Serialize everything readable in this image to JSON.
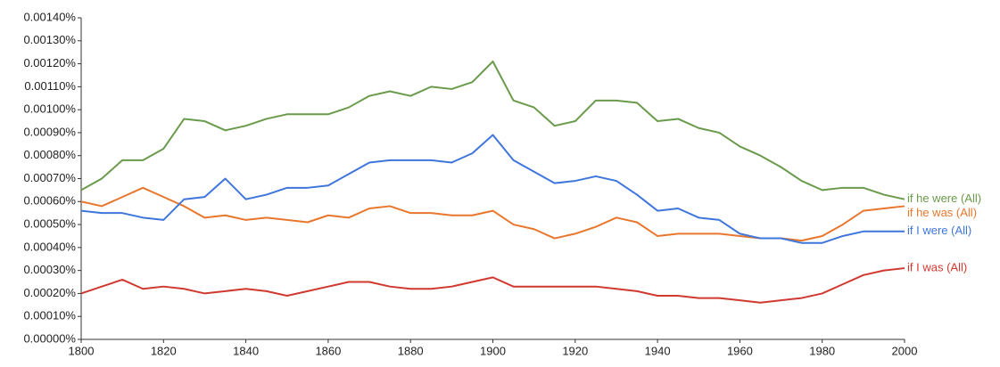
{
  "chart_data": {
    "type": "line",
    "x": [
      1800,
      1805,
      1810,
      1815,
      1820,
      1825,
      1830,
      1835,
      1840,
      1845,
      1850,
      1855,
      1860,
      1865,
      1870,
      1875,
      1880,
      1885,
      1890,
      1895,
      1900,
      1905,
      1910,
      1915,
      1920,
      1925,
      1930,
      1935,
      1940,
      1945,
      1950,
      1955,
      1960,
      1965,
      1970,
      1975,
      1980,
      1985,
      1990,
      1995,
      2000
    ],
    "series": [
      {
        "name": "if he were (All)",
        "color": "#6a9a4b",
        "values": [
          0.00065,
          0.0007,
          0.00078,
          0.00078,
          0.00083,
          0.00096,
          0.00095,
          0.00091,
          0.00093,
          0.00096,
          0.00098,
          0.00098,
          0.00098,
          0.00101,
          0.00106,
          0.00108,
          0.00106,
          0.0011,
          0.00109,
          0.00112,
          0.00121,
          0.00104,
          0.00101,
          0.00093,
          0.00095,
          0.00104,
          0.00104,
          0.00103,
          0.00095,
          0.00096,
          0.00092,
          0.0009,
          0.00084,
          0.0008,
          0.00075,
          0.00069,
          0.00065,
          0.00066,
          0.00066,
          0.00063,
          0.00061
        ]
      },
      {
        "name": "if he was (All)",
        "color": "#e8772e",
        "values": [
          0.0006,
          0.00058,
          0.00062,
          0.00066,
          0.00062,
          0.00058,
          0.00053,
          0.00054,
          0.00052,
          0.00053,
          0.00052,
          0.00051,
          0.00054,
          0.00053,
          0.00057,
          0.00058,
          0.00055,
          0.00055,
          0.00054,
          0.00054,
          0.00056,
          0.0005,
          0.00048,
          0.00044,
          0.00046,
          0.00049,
          0.00053,
          0.00051,
          0.00045,
          0.00046,
          0.00046,
          0.00046,
          0.00045,
          0.00044,
          0.00044,
          0.00043,
          0.00045,
          0.0005,
          0.00056,
          0.00057,
          0.00058
        ]
      },
      {
        "name": "if I were (All)",
        "color": "#3f76db",
        "values": [
          0.00056,
          0.00055,
          0.00055,
          0.00053,
          0.00052,
          0.00061,
          0.00062,
          0.0007,
          0.00061,
          0.00063,
          0.00066,
          0.00066,
          0.00067,
          0.00072,
          0.00077,
          0.00078,
          0.00078,
          0.00078,
          0.00077,
          0.00081,
          0.00089,
          0.00078,
          0.00073,
          0.00068,
          0.00069,
          0.00071,
          0.00069,
          0.00063,
          0.00056,
          0.00057,
          0.00053,
          0.00052,
          0.00046,
          0.00044,
          0.00044,
          0.00042,
          0.00042,
          0.00045,
          0.00047,
          0.00047,
          0.00047
        ]
      },
      {
        "name": "if I was (All)",
        "color": "#d0392f",
        "values": [
          0.0002,
          0.00023,
          0.00026,
          0.00022,
          0.00023,
          0.00022,
          0.0002,
          0.00021,
          0.00022,
          0.00021,
          0.00019,
          0.00021,
          0.00023,
          0.00025,
          0.00025,
          0.00023,
          0.00022,
          0.00022,
          0.00023,
          0.00025,
          0.00027,
          0.00023,
          0.00023,
          0.00023,
          0.00023,
          0.00023,
          0.00022,
          0.00021,
          0.00019,
          0.00019,
          0.00018,
          0.00018,
          0.00017,
          0.00016,
          0.00017,
          0.00018,
          0.0002,
          0.00024,
          0.00028,
          0.0003,
          0.00031
        ]
      }
    ],
    "xlim": [
      1800,
      2000
    ],
    "xticks": [
      1800,
      1820,
      1840,
      1860,
      1880,
      1900,
      1920,
      1940,
      1960,
      1980,
      2000
    ],
    "ylim": [
      0,
      0.0014
    ],
    "yticks": [
      {
        "value": 0,
        "label": "0.00000%"
      },
      {
        "value": 0.0001,
        "label": "0.00010%"
      },
      {
        "value": 0.0002,
        "label": "0.00020%"
      },
      {
        "value": 0.0003,
        "label": "0.00030%"
      },
      {
        "value": 0.0004,
        "label": "0.00040%"
      },
      {
        "value": 0.0005,
        "label": "0.00050%"
      },
      {
        "value": 0.0006,
        "label": "0.00060%"
      },
      {
        "value": 0.0007,
        "label": "0.00070%"
      },
      {
        "value": 0.0008,
        "label": "0.00080%"
      },
      {
        "value": 0.0009,
        "label": "0.00090%"
      },
      {
        "value": 0.001,
        "label": "0.00100%"
      },
      {
        "value": 0.0011,
        "label": "0.00110%"
      },
      {
        "value": 0.0012,
        "label": "0.00120%"
      },
      {
        "value": 0.0013,
        "label": "0.00130%"
      },
      {
        "value": 0.0014,
        "label": "0.00140%"
      }
    ],
    "grid": false
  }
}
